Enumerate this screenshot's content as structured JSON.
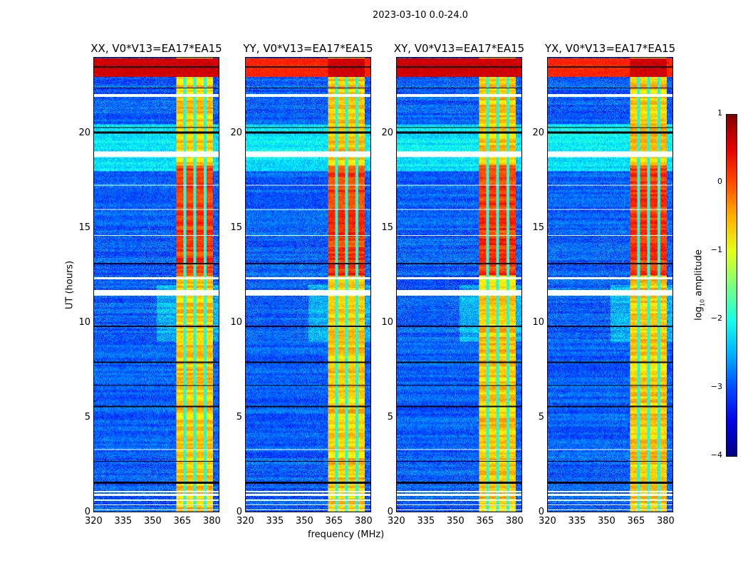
{
  "figure_title": "2023-03-10 0.0-24.0",
  "chart_data": {
    "type": "heatmap",
    "panels": [
      {
        "title": "XX, V0*V13=EA17*EA15",
        "seed": 1
      },
      {
        "title": "YY, V0*V13=EA17*EA15",
        "seed": 2
      },
      {
        "title": "XY, V0*V13=EA17*EA15",
        "seed": 3
      },
      {
        "title": "YX, V0*V13=EA17*EA15",
        "seed": 4
      }
    ],
    "xlabel": "frequency (MHz)",
    "ylabel": "UT (hours)",
    "xlim": [
      320,
      384
    ],
    "ylim": [
      0,
      24
    ],
    "xticks": [
      "320",
      "335",
      "350",
      "365",
      "380"
    ],
    "yticks": [
      "0",
      "5",
      "10",
      "15",
      "20"
    ],
    "colorbar": {
      "label": "log10 amplitude",
      "range": [
        -4,
        1
      ],
      "ticks": [
        "1",
        "0",
        "−1",
        "−2",
        "−3",
        "−4"
      ],
      "colormap": "jet"
    },
    "signal_band_mhz": [
      362,
      381
    ],
    "notch_freqs_mhz": [
      366.5,
      371.5,
      377
    ],
    "background_level": -2.9,
    "band_level": -0.6,
    "strong_band_hours": [
      [
        12.5,
        18.3
      ]
    ],
    "saturated_hours": [
      [
        23.0,
        24.0
      ]
    ],
    "flagged_gaps_hours": [
      [
        0.1,
        0.15
      ],
      [
        0.35,
        0.4
      ],
      [
        0.6,
        0.65
      ],
      [
        0.85,
        0.95
      ],
      [
        1.05,
        1.1
      ],
      [
        11.45,
        11.75
      ],
      [
        12.3,
        12.4
      ],
      [
        18.75,
        19.05
      ],
      [
        21.95,
        22.1
      ],
      [
        17.25,
        17.3
      ],
      [
        3.3,
        3.33
      ],
      [
        5.0,
        5.03
      ],
      [
        14.6,
        14.63
      ],
      [
        16.0,
        16.03
      ]
    ],
    "dropout_hours": [
      [
        1.5,
        1.6
      ],
      [
        2.65,
        2.7
      ],
      [
        5.55,
        5.6
      ],
      [
        6.65,
        6.7
      ],
      [
        7.85,
        7.95
      ],
      [
        9.8,
        9.85
      ],
      [
        13.1,
        13.15
      ],
      [
        20.0,
        20.1
      ],
      [
        20.3,
        20.35
      ],
      [
        22.4,
        22.45
      ],
      [
        23.5,
        23.55
      ]
    ]
  }
}
